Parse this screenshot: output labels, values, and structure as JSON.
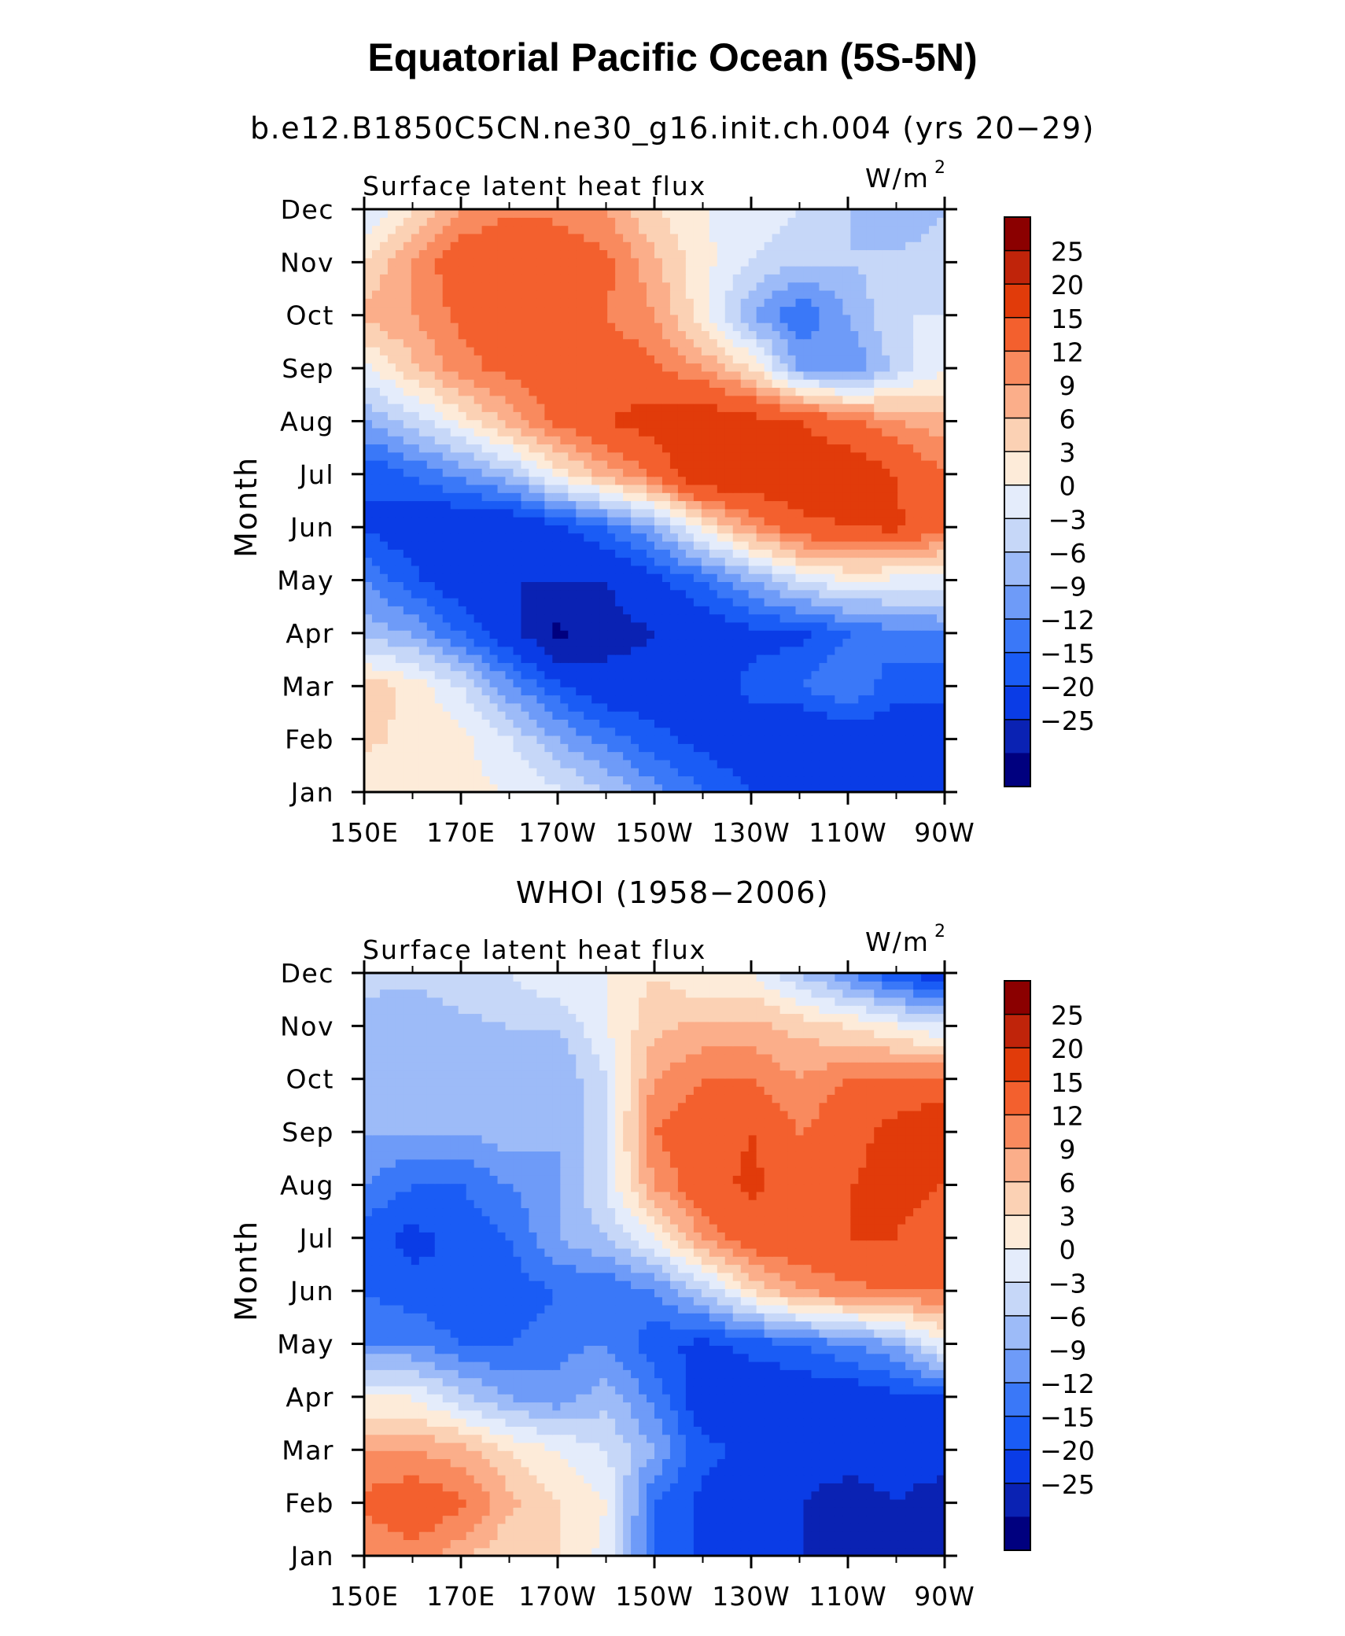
{
  "title": "Equatorial Pacific Ocean (5S-5N)",
  "colors": [
    "#00007f",
    "#0a22b3",
    "#0a3ce6",
    "#1a5cf5",
    "#3a78f8",
    "#6e9bf8",
    "#9dbbf8",
    "#c6d7f8",
    "#e4ecfb",
    "#fdebd9",
    "#fbd1b4",
    "#fbae8a",
    "#f98a5e",
    "#f3602e",
    "#e13b0a",
    "#c0240a",
    "#8b0000"
  ],
  "chart_data": [
    {
      "type": "heatmap",
      "title": "b.e12.B1850C5CN.ne30_g16.init.ch.004 (yrs 20−29)",
      "subtitle": "Surface latent heat flux",
      "units_base": "W/m",
      "units_exp": "2",
      "ylabel": "Month",
      "xlabel": "",
      "x_ticks": [
        "150E",
        "170E",
        "170W",
        "150W",
        "130W",
        "110W",
        "90W"
      ],
      "x_values_deg_east": [
        150,
        170,
        190,
        210,
        230,
        250,
        270
      ],
      "y_ticks": [
        "Jan",
        "Feb",
        "Mar",
        "Apr",
        "May",
        "Jun",
        "Jul",
        "Aug",
        "Sep",
        "Oct",
        "Nov",
        "Dec"
      ],
      "colorbar_labels": [
        "25",
        "20",
        "15",
        "12",
        "9",
        "6",
        "3",
        "0",
        "−3",
        "−6",
        "−9",
        "−12",
        "−15",
        "−20",
        "−25"
      ],
      "levels": [
        -25,
        -20,
        -15,
        -12,
        -9,
        -6,
        -3,
        0,
        3,
        6,
        9,
        12,
        15,
        20,
        25
      ],
      "grid_lon": [
        150,
        160,
        170,
        180,
        190,
        200,
        210,
        220,
        230,
        240,
        250,
        260,
        270
      ],
      "grid_month": [
        "Jan",
        "Feb",
        "Mar",
        "Apr",
        "May",
        "Jun",
        "Jul",
        "Aug",
        "Sep",
        "Oct",
        "Nov",
        "Dec"
      ],
      "values": [
        [
          3,
          3,
          4,
          3,
          1,
          -3,
          -8,
          -12,
          -15,
          -17,
          -18,
          -18,
          -18
        ],
        [
          7,
          5,
          4,
          0,
          -6,
          -10,
          -14,
          -16,
          -18,
          -20,
          -18,
          -18,
          -18
        ],
        [
          8,
          5,
          0,
          -8,
          -14,
          -18,
          -18,
          -18,
          -14,
          -12,
          -9,
          -14,
          -14
        ],
        [
          -4,
          -6,
          -12,
          -18,
          -26,
          -22,
          -20,
          -18,
          -16,
          -16,
          -12,
          -10,
          -9
        ],
        [
          -9,
          -14,
          -18,
          -20,
          -20,
          -20,
          -16,
          -12,
          -6,
          0,
          3,
          2,
          2
        ],
        [
          -15,
          -18,
          -20,
          -20,
          -16,
          -12,
          -6,
          4,
          12,
          18,
          20,
          21,
          15
        ],
        [
          -15,
          -12,
          -8,
          -4,
          4,
          10,
          16,
          25,
          25,
          25,
          24,
          20,
          15
        ],
        [
          -6,
          -2,
          4,
          10,
          16,
          20,
          22,
          24,
          22,
          20,
          16,
          12,
          10
        ],
        [
          2,
          8,
          14,
          16,
          18,
          18,
          16,
          12,
          6,
          -6,
          -9,
          -2,
          3
        ],
        [
          10,
          12,
          16,
          16,
          16,
          15,
          12,
          4,
          -6,
          -12,
          -6,
          0,
          0
        ],
        [
          6,
          12,
          18,
          20,
          18,
          16,
          10,
          4,
          0,
          -3,
          -3,
          -2,
          -1
        ],
        [
          0,
          6,
          12,
          14,
          14,
          12,
          6,
          3,
          2,
          0,
          -3,
          -6,
          -3
        ]
      ]
    },
    {
      "type": "heatmap",
      "title": "WHOI (1958−2006)",
      "subtitle": "Surface latent heat flux",
      "units_base": "W/m",
      "units_exp": "2",
      "ylabel": "Month",
      "xlabel": "",
      "x_ticks": [
        "150E",
        "170E",
        "170W",
        "150W",
        "130W",
        "110W",
        "90W"
      ],
      "x_values_deg_east": [
        150,
        170,
        190,
        210,
        230,
        250,
        270
      ],
      "y_ticks": [
        "Jan",
        "Feb",
        "Mar",
        "Apr",
        "May",
        "Jun",
        "Jul",
        "Aug",
        "Sep",
        "Oct",
        "Nov",
        "Dec"
      ],
      "colorbar_labels": [
        "25",
        "20",
        "15",
        "12",
        "9",
        "6",
        "3",
        "0",
        "−3",
        "−6",
        "−9",
        "−12",
        "−15",
        "−20",
        "−25"
      ],
      "levels": [
        -25,
        -20,
        -15,
        -12,
        -9,
        -6,
        -3,
        0,
        3,
        6,
        9,
        12,
        15,
        20,
        25
      ],
      "grid_lon": [
        150,
        160,
        170,
        180,
        190,
        200,
        210,
        220,
        230,
        240,
        250,
        260,
        270
      ],
      "grid_month": [
        "Jan",
        "Feb",
        "Mar",
        "Apr",
        "May",
        "Jun",
        "Jul",
        "Aug",
        "Sep",
        "Oct",
        "Nov",
        "Dec"
      ],
      "values": [
        [
          12,
          14,
          10,
          6,
          6,
          2,
          -12,
          -16,
          -20,
          -20,
          -22,
          -24,
          -24
        ],
        [
          16,
          18,
          16,
          10,
          6,
          3,
          -12,
          -16,
          -18,
          -20,
          -22,
          -20,
          -22
        ],
        [
          12,
          12,
          10,
          6,
          3,
          0,
          -6,
          -14,
          -16,
          -18,
          -18,
          -18,
          -18
        ],
        [
          3,
          3,
          -2,
          -6,
          -8,
          -4,
          -10,
          -18,
          -18,
          -18,
          -18,
          -16,
          -15
        ],
        [
          -9,
          -9,
          -12,
          -12,
          -10,
          -9,
          -14,
          -16,
          -14,
          -12,
          -9,
          -6,
          3
        ],
        [
          -12,
          -14,
          -15,
          -14,
          -12,
          -12,
          -9,
          -3,
          6,
          12,
          14,
          15,
          15
        ],
        [
          -14,
          -16,
          -14,
          -12,
          -6,
          -3,
          3,
          12,
          18,
          18,
          20,
          20,
          18
        ],
        [
          -9,
          -12,
          -12,
          -9,
          -6,
          0,
          12,
          18,
          21,
          18,
          20,
          21,
          20
        ],
        [
          -6,
          -6,
          -6,
          -4,
          -6,
          0,
          15,
          18,
          20,
          15,
          18,
          22,
          25
        ],
        [
          -5,
          -4,
          -3,
          -5,
          -6,
          0,
          12,
          15,
          15,
          12,
          15,
          16,
          16
        ],
        [
          -4,
          -6,
          -4,
          -3,
          -3,
          3,
          8,
          10,
          10,
          8,
          6,
          3,
          0
        ],
        [
          -2,
          -2,
          0,
          0,
          3,
          3,
          6,
          3,
          3,
          -3,
          -9,
          -15,
          -18
        ]
      ]
    }
  ]
}
